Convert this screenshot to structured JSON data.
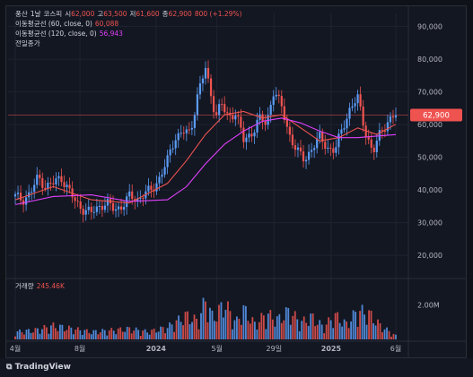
{
  "header": {
    "symbol": "풍산",
    "interval": "1날",
    "exchange": "코스피",
    "open_label": "시",
    "open": "62,000",
    "high_label": "고",
    "high": "63,500",
    "low_label": "저",
    "low": "61,600",
    "close_label": "종",
    "close": "62,900",
    "change": "800 (+1.29%)"
  },
  "indicators": [
    {
      "label": "이동평균선 (60, close, 0)",
      "value": "60,088",
      "color": "#ef5350"
    },
    {
      "label": "이동평균선 (120, close, 0)",
      "value": "56,943",
      "color": "#e040fb"
    },
    {
      "label": "전일종가",
      "value": "",
      "color": "#d1d4dc"
    }
  ],
  "volume_pane": {
    "label": "거래량",
    "value": "245.46K",
    "axis_label": "2.00M"
  },
  "price_badge": "62,900",
  "footer": {
    "brand": "TradingView"
  },
  "colors": {
    "up": "#5b9cf6",
    "down": "#ef5350",
    "ma60": "#ef5350",
    "ma120": "#e040fb",
    "bg": "#131722"
  },
  "chart_data": {
    "type": "line",
    "title": "풍산, 1날, 코스피",
    "y_ticks": [
      "90,000",
      "80,000",
      "70,000",
      "60,000",
      "50,000",
      "40,000",
      "30,000",
      "20,000"
    ],
    "y_tick_values": [
      90000,
      80000,
      70000,
      60000,
      50000,
      40000,
      30000,
      20000
    ],
    "ylim": [
      14000,
      94000
    ],
    "x_ticks": [
      "4월",
      "8월",
      "2024",
      "5월",
      "29일",
      "2025",
      "6월"
    ],
    "x_tick_positions": [
      0,
      0.17,
      0.37,
      0.53,
      0.68,
      0.83,
      1.0
    ],
    "price_series": {
      "x": [
        0,
        0.02,
        0.04,
        0.06,
        0.08,
        0.1,
        0.12,
        0.14,
        0.16,
        0.18,
        0.2,
        0.22,
        0.24,
        0.26,
        0.28,
        0.3,
        0.32,
        0.34,
        0.36,
        0.38,
        0.4,
        0.42,
        0.44,
        0.46,
        0.48,
        0.5,
        0.51,
        0.52,
        0.53,
        0.54,
        0.55,
        0.56,
        0.58,
        0.6,
        0.62,
        0.64,
        0.66,
        0.68,
        0.7,
        0.72,
        0.74,
        0.76,
        0.78,
        0.8,
        0.82,
        0.84,
        0.86,
        0.88,
        0.9,
        0.92,
        0.94,
        0.96,
        0.98,
        1.0
      ],
      "y": [
        38000,
        37000,
        39000,
        44000,
        41000,
        42000,
        44000,
        40000,
        36000,
        34000,
        33000,
        35000,
        36000,
        34000,
        35000,
        38000,
        37000,
        39000,
        40000,
        44000,
        49000,
        56000,
        58000,
        57000,
        70000,
        77000,
        71000,
        66000,
        63000,
        67000,
        64000,
        62000,
        64000,
        55000,
        57000,
        62000,
        60000,
        71000,
        65000,
        57000,
        52000,
        49000,
        53000,
        56000,
        53000,
        52000,
        59000,
        65000,
        68000,
        58000,
        51000,
        58000,
        61000,
        62900
      ]
    },
    "series": [
      {
        "name": "이동평균선 (60, close, 0)",
        "x": [
          0,
          0.1,
          0.2,
          0.3,
          0.4,
          0.45,
          0.5,
          0.55,
          0.6,
          0.65,
          0.7,
          0.75,
          0.8,
          0.85,
          0.9,
          0.95,
          1.0
        ],
        "values": [
          37000,
          41000,
          37000,
          36000,
          42000,
          49000,
          57000,
          63000,
          64000,
          62000,
          63000,
          59000,
          55000,
          56000,
          59000,
          57000,
          60088
        ]
      },
      {
        "name": "이동평균선 (120, close, 0)",
        "x": [
          0,
          0.1,
          0.2,
          0.3,
          0.4,
          0.45,
          0.5,
          0.55,
          0.6,
          0.65,
          0.7,
          0.75,
          0.8,
          0.85,
          0.9,
          0.95,
          1.0
        ],
        "values": [
          35500,
          38000,
          38500,
          36500,
          37000,
          41000,
          48000,
          54000,
          58000,
          61000,
          62000,
          60500,
          58000,
          56000,
          56000,
          56500,
          56943
        ]
      }
    ],
    "volume": {
      "x": [
        0.0,
        0.05,
        0.1,
        0.15,
        0.2,
        0.25,
        0.3,
        0.35,
        0.4,
        0.45,
        0.48,
        0.5,
        0.52,
        0.55,
        0.58,
        0.6,
        0.63,
        0.66,
        0.69,
        0.72,
        0.75,
        0.78,
        0.81,
        0.84,
        0.87,
        0.9,
        0.93,
        0.96,
        1.0
      ],
      "values": [
        0.5,
        0.6,
        0.9,
        0.7,
        0.5,
        0.6,
        0.7,
        0.5,
        0.8,
        1.6,
        1.2,
        2.6,
        1.4,
        2.4,
        1.1,
        2.0,
        1.0,
        1.7,
        1.3,
        1.9,
        1.1,
        1.5,
        0.8,
        1.6,
        1.0,
        1.9,
        1.7,
        0.9,
        0.25
      ],
      "unit": "M",
      "ylim": [
        0,
        2.8
      ]
    }
  }
}
